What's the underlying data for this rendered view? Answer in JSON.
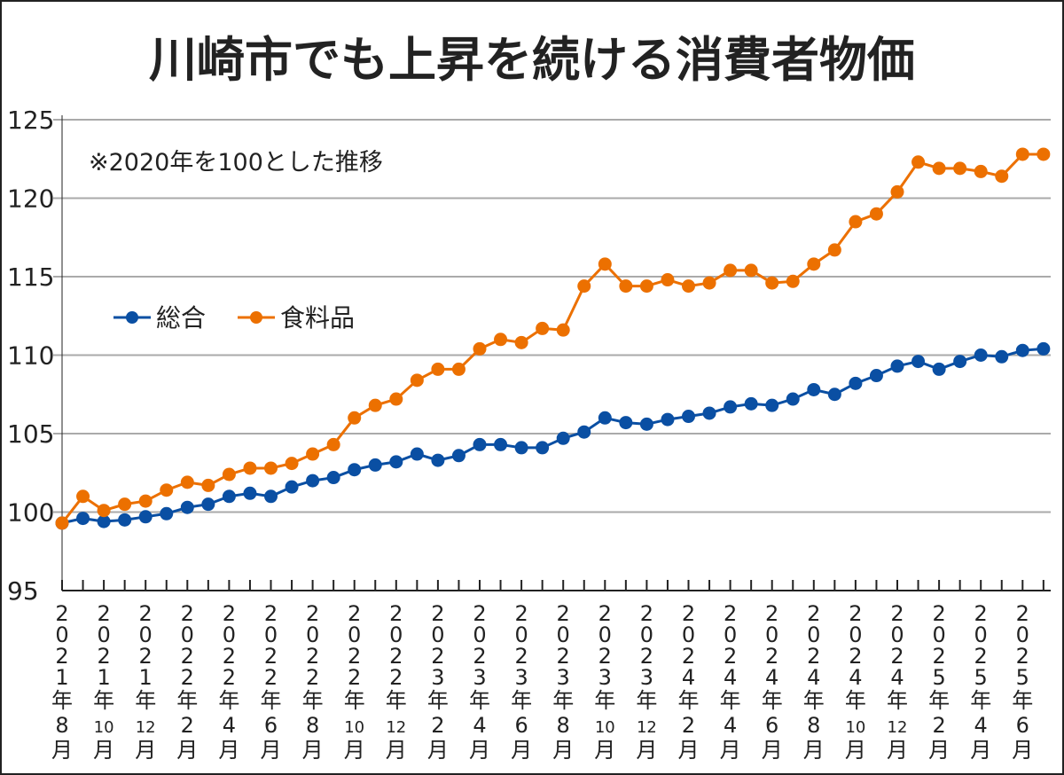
{
  "chart_data": {
    "type": "line",
    "title": "川崎市でも上昇を続ける消費者物価",
    "note": "※2020年を100とした推移",
    "ylim": [
      95,
      125
    ],
    "yticks": [
      95,
      100,
      105,
      110,
      115,
      120,
      125
    ],
    "grid": true,
    "legend_position": "left-middle",
    "x": [
      "2021-08",
      "2021-09",
      "2021-10",
      "2021-11",
      "2021-12",
      "2022-01",
      "2022-02",
      "2022-03",
      "2022-04",
      "2022-05",
      "2022-06",
      "2022-07",
      "2022-08",
      "2022-09",
      "2022-10",
      "2022-11",
      "2022-12",
      "2023-01",
      "2023-02",
      "2023-03",
      "2023-04",
      "2023-05",
      "2023-06",
      "2023-07",
      "2023-08",
      "2023-09",
      "2023-10",
      "2023-11",
      "2023-12",
      "2024-01",
      "2024-02",
      "2024-03",
      "2024-04",
      "2024-05",
      "2024-06",
      "2024-07",
      "2024-08",
      "2024-09",
      "2024-10",
      "2024-11",
      "2024-12",
      "2025-01",
      "2025-02",
      "2025-03",
      "2025-04",
      "2025-05",
      "2025-06",
      "2025-07"
    ],
    "xtick_labels": [
      [
        "2",
        "0",
        "2",
        "1",
        "年",
        "8",
        "月"
      ],
      [
        "2",
        "0",
        "2",
        "1",
        "年",
        "10",
        "月"
      ],
      [
        "2",
        "0",
        "2",
        "1",
        "年",
        "12",
        "月"
      ],
      [
        "2",
        "0",
        "2",
        "2",
        "年",
        "2",
        "月"
      ],
      [
        "2",
        "0",
        "2",
        "2",
        "年",
        "4",
        "月"
      ],
      [
        "2",
        "0",
        "2",
        "2",
        "年",
        "6",
        "月"
      ],
      [
        "2",
        "0",
        "2",
        "2",
        "年",
        "8",
        "月"
      ],
      [
        "2",
        "0",
        "2",
        "2",
        "年",
        "10",
        "月"
      ],
      [
        "2",
        "0",
        "2",
        "2",
        "年",
        "12",
        "月"
      ],
      [
        "2",
        "0",
        "2",
        "3",
        "年",
        "2",
        "月"
      ],
      [
        "2",
        "0",
        "2",
        "3",
        "年",
        "4",
        "月"
      ],
      [
        "2",
        "0",
        "2",
        "3",
        "年",
        "6",
        "月"
      ],
      [
        "2",
        "0",
        "2",
        "3",
        "年",
        "8",
        "月"
      ],
      [
        "2",
        "0",
        "2",
        "3",
        "年",
        "10",
        "月"
      ],
      [
        "2",
        "0",
        "2",
        "3",
        "年",
        "12",
        "月"
      ],
      [
        "2",
        "0",
        "2",
        "4",
        "年",
        "2",
        "月"
      ],
      [
        "2",
        "0",
        "2",
        "4",
        "年",
        "4",
        "月"
      ],
      [
        "2",
        "0",
        "2",
        "4",
        "年",
        "6",
        "月"
      ],
      [
        "2",
        "0",
        "2",
        "4",
        "年",
        "8",
        "月"
      ],
      [
        "2",
        "0",
        "2",
        "4",
        "年",
        "10",
        "月"
      ],
      [
        "2",
        "0",
        "2",
        "4",
        "年",
        "12",
        "月"
      ],
      [
        "2",
        "0",
        "2",
        "5",
        "年",
        "2",
        "月"
      ],
      [
        "2",
        "0",
        "2",
        "5",
        "年",
        "4",
        "月"
      ],
      [
        "2",
        "0",
        "2",
        "5",
        "年",
        "6",
        "月"
      ]
    ],
    "series": [
      {
        "name": "総合",
        "color": "#0a4fa3",
        "values": [
          99.3,
          99.6,
          99.4,
          99.5,
          99.7,
          99.9,
          100.3,
          100.5,
          101.0,
          101.2,
          101.0,
          101.6,
          102.0,
          102.2,
          102.7,
          103.0,
          103.2,
          103.7,
          103.3,
          103.6,
          104.3,
          104.3,
          104.1,
          104.1,
          104.7,
          105.1,
          106.0,
          105.7,
          105.6,
          105.9,
          106.1,
          106.3,
          106.7,
          106.9,
          106.8,
          107.2,
          107.8,
          107.5,
          108.2,
          108.7,
          109.3,
          109.6,
          109.1,
          109.6,
          110.0,
          109.9,
          110.3,
          110.4
        ]
      },
      {
        "name": "食料品",
        "color": "#ec7000",
        "values": [
          99.3,
          101.0,
          100.1,
          100.5,
          100.7,
          101.4,
          101.9,
          101.7,
          102.4,
          102.8,
          102.8,
          103.1,
          103.7,
          104.3,
          106.0,
          106.8,
          107.2,
          108.4,
          109.1,
          109.1,
          110.4,
          111.0,
          110.8,
          111.7,
          111.6,
          114.4,
          115.8,
          114.4,
          114.4,
          114.8,
          114.4,
          114.6,
          115.4,
          115.4,
          114.6,
          114.7,
          115.8,
          116.7,
          118.5,
          119.0,
          120.4,
          122.3,
          121.9,
          121.9,
          121.7,
          121.4,
          122.8,
          122.8
        ]
      }
    ]
  }
}
